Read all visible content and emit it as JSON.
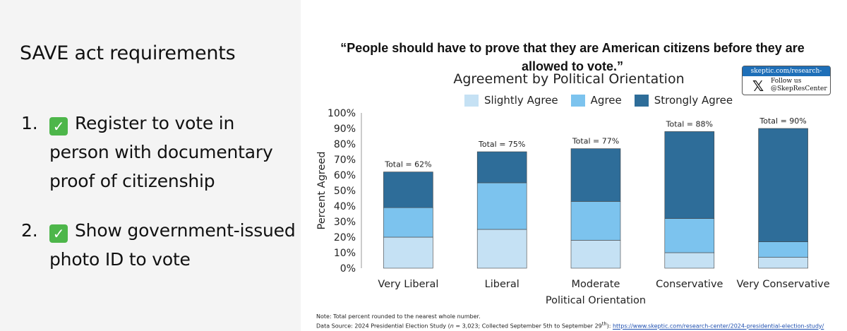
{
  "left": {
    "title": "SAVE act requirements",
    "items": [
      {
        "num": "1.",
        "check": "✓",
        "text": "Register to vote in person with documentary proof  of citizenship"
      },
      {
        "num": "2.",
        "check": "✓",
        "text": "Show government-issued photo ID to vote"
      }
    ]
  },
  "badge": {
    "site": "skeptic.com/research-center",
    "x_glyph": "𝕏",
    "follow": "Follow us",
    "handle": "@SkepResCenter"
  },
  "notes": {
    "line1": "Note: Total percent rounded to the nearest whole number.",
    "line2_prefix": "Data Source: 2024 Presidential Election Study (",
    "n_symbol": "n",
    "line2_mid": " = 3,023; Collected September 5th to September 29",
    "sup": "th",
    "line2_after": "): ",
    "link": "https://www.skeptic.com/research-center/2024-presidential-election-study/"
  },
  "chart_data": {
    "type": "bar",
    "stacked": true,
    "title": "“People should have to prove that they are American citizens before they are allowed to vote.”",
    "subtitle": "Agreement by Political Orientation",
    "xlabel": "Political Orientation",
    "ylabel": "Percent Agreed",
    "ylim": [
      0,
      100
    ],
    "yticks": [
      "0%",
      "10%",
      "20%",
      "30%",
      "40%",
      "50%",
      "60%",
      "70%",
      "80%",
      "90%",
      "100%"
    ],
    "categories": [
      "Very Liberal",
      "Liberal",
      "Moderate",
      "Conservative",
      "Very Conservative"
    ],
    "series": [
      {
        "name": "Slightly Agree",
        "color": "#c5e1f4",
        "values": [
          20,
          25,
          18,
          10,
          7
        ]
      },
      {
        "name": "Agree",
        "color": "#7cc3ee",
        "values": [
          19,
          30,
          25,
          22,
          10
        ]
      },
      {
        "name": "Strongly Agree",
        "color": "#2e6d99",
        "values": [
          23,
          20,
          34,
          56,
          73
        ]
      }
    ],
    "totals": [
      "Total = 62%",
      "Total = 75%",
      "Total = 77%",
      "Total = 88%",
      "Total = 90%"
    ],
    "total_values": [
      62,
      75,
      77,
      88,
      90
    ],
    "legend": "top",
    "grid": false
  }
}
